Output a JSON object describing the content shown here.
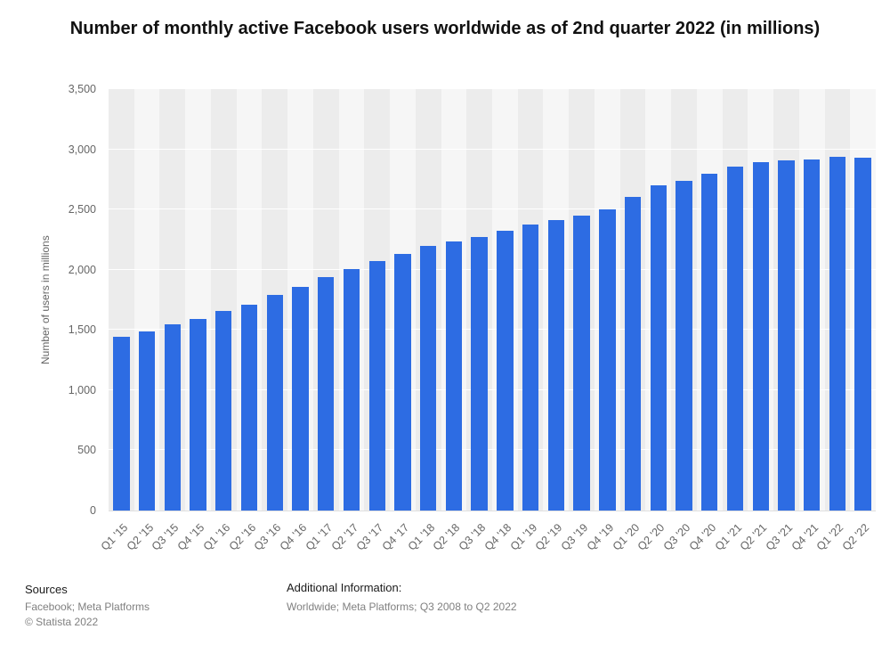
{
  "title": "Number of monthly active Facebook users worldwide as of 2nd quarter 2022 (in millions)",
  "chart_data": {
    "type": "bar",
    "title": "Number of monthly active Facebook users worldwide as of 2nd quarter 2022 (in millions)",
    "categories": [
      "Q1 '15",
      "Q2 '15",
      "Q3 '15",
      "Q4 '15",
      "Q1 '16",
      "Q2 '16",
      "Q3 '16",
      "Q4 '16",
      "Q1 '17",
      "Q2 '17",
      "Q3 '17",
      "Q4 '17",
      "Q1 '18",
      "Q2 '18",
      "Q3 '18",
      "Q4 '18",
      "Q1 '19",
      "Q2 '19",
      "Q3 '19",
      "Q4 '19",
      "Q1 '20",
      "Q2 '20",
      "Q3 '20",
      "Q4 '20",
      "Q1 '21",
      "Q2 '21",
      "Q3 '21",
      "Q4 '21",
      "Q1 '22",
      "Q2 '22"
    ],
    "values": [
      1441,
      1490,
      1545,
      1591,
      1654,
      1712,
      1788,
      1860,
      1936,
      2006,
      2072,
      2129,
      2196,
      2234,
      2271,
      2320,
      2375,
      2414,
      2449,
      2498,
      2603,
      2701,
      2740,
      2797,
      2853,
      2895,
      2910,
      2912,
      2936,
      2934
    ],
    "xlabel": "",
    "ylabel": "Number of users in millions",
    "ylim": [
      0,
      3500
    ],
    "yticks": [
      0,
      500,
      1000,
      1500,
      2000,
      2500,
      3000,
      3500
    ],
    "bar_color": "#2d6ce3",
    "grid": true,
    "legend": "none",
    "plot_band_colors": [
      "#ececec",
      "#f6f6f6"
    ]
  },
  "footer": {
    "sources_label": "Sources",
    "sources_text": "Facebook; Meta Platforms",
    "copyright": "© Statista 2022",
    "additional_label": "Additional Information:",
    "additional_text": "Worldwide; Meta Platforms; Q3 2008 to Q2 2022"
  }
}
